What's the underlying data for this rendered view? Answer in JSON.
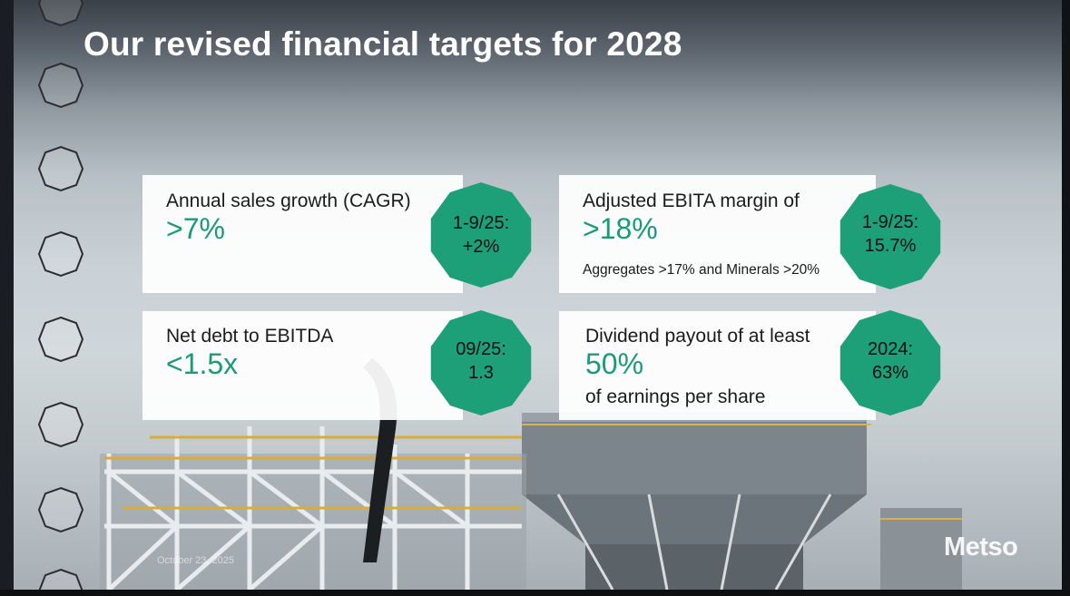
{
  "slide": {
    "title": "Our revised financial targets for 2028",
    "footer_date": "October 23, 2025",
    "logo_text": "Metso"
  },
  "cards": [
    {
      "label": "Annual sales growth (CAGR)",
      "value": ">7%",
      "badge_line1": "1-9/25:",
      "badge_line2": "+2%"
    },
    {
      "label": "Adjusted EBITA margin of",
      "value": ">18%",
      "note": "Aggregates >17% and Minerals >20%",
      "badge_line1": "1-9/25:",
      "badge_line2": "15.7%"
    },
    {
      "label": "Net debt to EBITDA",
      "value": "<1.5x",
      "badge_line1": "09/25:",
      "badge_line2": "1.3"
    },
    {
      "label": "Dividend payout of at least",
      "value": "50%",
      "sub": "of earnings per share",
      "badge_line1": "2024:",
      "badge_line2": "63%"
    }
  ],
  "colors": {
    "accent": "#1a9b77",
    "badge": "#1d9f77",
    "title": "#ffffff"
  },
  "icons": [
    "binder-ring-icon"
  ]
}
